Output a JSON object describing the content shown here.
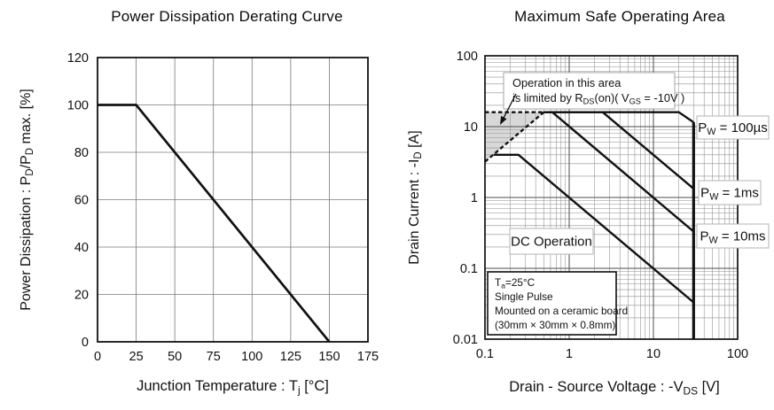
{
  "page": {
    "background": "#ffffff",
    "ink": "#111111"
  },
  "chart_data": [
    {
      "type": "line",
      "title": "Power Dissipation Derating Curve",
      "xlabel": "Junction Temperature : T_{j} [°C]",
      "ylabel": "Power Dissipation : P_{D}/P_{D} max. [%]",
      "xscale": "linear",
      "yscale": "linear",
      "xlim": [
        0,
        175
      ],
      "ylim": [
        0,
        120
      ],
      "xticks": [
        0,
        25,
        50,
        75,
        100,
        125,
        150,
        175
      ],
      "yticks": [
        0,
        20,
        40,
        60,
        80,
        100,
        120
      ],
      "grid": true,
      "legend_position": "none",
      "series": [
        {
          "name": "derating-line",
          "points": [
            [
              0,
              100
            ],
            [
              25,
              100
            ],
            [
              150,
              0
            ]
          ],
          "color": "#111111",
          "style": "solid"
        }
      ]
    },
    {
      "type": "line",
      "title": "Maximum Safe Operating Area",
      "xlabel": "Drain - Source Voltage : -V_{DS} [V]",
      "ylabel": "Drain Current : -I_{D} [A]",
      "xscale": "log",
      "yscale": "log",
      "xlim": [
        0.1,
        100
      ],
      "ylim": [
        0.01,
        100
      ],
      "xticks": [
        0.1,
        1,
        10,
        100
      ],
      "yticks": [
        0.01,
        0.1,
        1,
        10,
        100
      ],
      "grid": true,
      "legend_position": "inline-boxes",
      "series": [
        {
          "name": "pw-100us",
          "label": "P_{W} = 100µs",
          "points": [
            [
              0.5,
              16
            ],
            [
              20,
              16
            ],
            [
              30,
              11.5
            ]
          ],
          "color": "#111111",
          "style": "solid"
        },
        {
          "name": "pw-1ms",
          "label": "P_{W} = 1ms",
          "points": [
            [
              0.5,
              16
            ],
            [
              2.5,
              16
            ],
            [
              30,
              1.33
            ]
          ],
          "color": "#111111",
          "style": "solid"
        },
        {
          "name": "pw-10ms",
          "label": "P_{W} = 10ms",
          "points": [
            [
              0.5,
              16
            ],
            [
              0.63,
              16
            ],
            [
              30,
              0.33
            ]
          ],
          "color": "#111111",
          "style": "solid"
        },
        {
          "name": "dc-operation",
          "label": "DC Operation",
          "points": [
            [
              0.127,
              4
            ],
            [
              0.25,
              4
            ],
            [
              30,
              0.033
            ]
          ],
          "color": "#111111",
          "style": "solid"
        },
        {
          "name": "vds-limit-30v",
          "points": [
            [
              30,
              11.5
            ],
            [
              30,
              0.01
            ]
          ],
          "color": "#111111",
          "style": "solid",
          "width": 3.2
        },
        {
          "name": "rdson-limit-horizontal",
          "points": [
            [
              0.1,
              16
            ],
            [
              0.5,
              16
            ]
          ],
          "color": "#111111",
          "style": "dashed"
        },
        {
          "name": "rdson-limit-diagonal",
          "points": [
            [
              0.1,
              3.2
            ],
            [
              0.5,
              16
            ]
          ],
          "color": "#111111",
          "style": "dashed"
        }
      ],
      "shaded_region": {
        "name": "rdson-limited-area",
        "points": [
          [
            0.1,
            3.2
          ],
          [
            0.5,
            16
          ],
          [
            0.1,
            16
          ]
        ],
        "fill": "#d8d8d8"
      },
      "annotation": {
        "lines": [
          "Operation in this area",
          "is limited by R_{DS}(on)( V_{GS} = -10V )"
        ]
      },
      "conditions": [
        "T_{a}=25°C",
        "Single Pulse",
        "Mounted on a ceramic board",
        "(30mm × 30mm × 0.8mm)"
      ]
    }
  ]
}
